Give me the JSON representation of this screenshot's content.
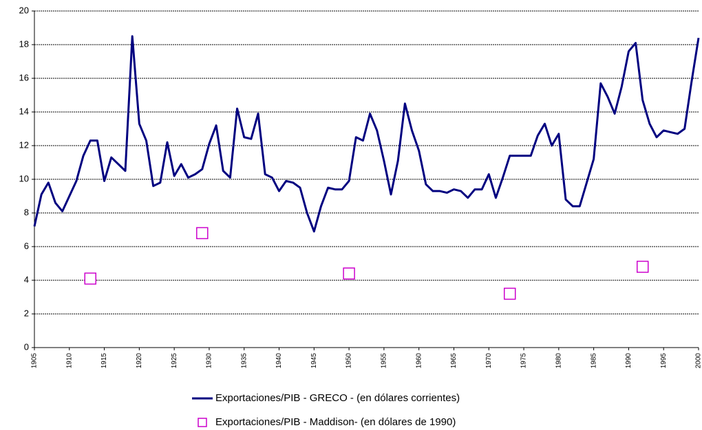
{
  "chart_data": {
    "type": "line",
    "x": [
      1905,
      1906,
      1907,
      1908,
      1909,
      1910,
      1911,
      1912,
      1913,
      1914,
      1915,
      1916,
      1917,
      1918,
      1919,
      1920,
      1921,
      1922,
      1923,
      1924,
      1925,
      1926,
      1927,
      1928,
      1929,
      1930,
      1931,
      1932,
      1933,
      1934,
      1935,
      1936,
      1937,
      1938,
      1939,
      1940,
      1941,
      1942,
      1943,
      1944,
      1945,
      1946,
      1947,
      1948,
      1949,
      1950,
      1951,
      1952,
      1953,
      1954,
      1955,
      1956,
      1957,
      1958,
      1959,
      1960,
      1961,
      1962,
      1963,
      1964,
      1965,
      1966,
      1967,
      1968,
      1969,
      1970,
      1971,
      1972,
      1973,
      1974,
      1975,
      1976,
      1977,
      1978,
      1979,
      1980,
      1981,
      1982,
      1983,
      1984,
      1985,
      1986,
      1987,
      1988,
      1989,
      1990,
      1991,
      1992,
      1993,
      1994,
      1995,
      1996,
      1997,
      1998,
      1999,
      2000
    ],
    "series": [
      {
        "name": "Exportaciones/PIB - GRECO - (en dólares corrientes)",
        "type": "line",
        "color": "#000080",
        "values": [
          7.2,
          9.1,
          9.8,
          8.6,
          8.1,
          9.0,
          9.9,
          11.4,
          12.3,
          12.3,
          9.9,
          11.3,
          10.9,
          10.5,
          18.5,
          13.3,
          12.3,
          9.6,
          9.8,
          12.2,
          10.2,
          10.9,
          10.1,
          10.3,
          10.6,
          12.1,
          13.2,
          10.5,
          10.1,
          14.2,
          12.5,
          12.4,
          13.9,
          10.3,
          10.1,
          9.3,
          9.9,
          9.8,
          9.5,
          8.0,
          6.9,
          8.4,
          9.5,
          9.4,
          9.4,
          9.9,
          12.5,
          12.3,
          13.9,
          12.9,
          11.1,
          9.1,
          11.1,
          14.5,
          12.9,
          11.7,
          9.7,
          9.3,
          9.3,
          9.2,
          9.4,
          9.3,
          8.9,
          9.4,
          9.4,
          10.3,
          8.9,
          10.1,
          11.4,
          11.4,
          11.4,
          11.4,
          12.6,
          13.3,
          12.0,
          12.7,
          8.8,
          8.4,
          8.4,
          9.8,
          11.2,
          15.7,
          14.9,
          13.9,
          15.5,
          17.6,
          18.1,
          14.7,
          13.3,
          12.5,
          12.9,
          12.8,
          12.7,
          13.0,
          15.8,
          18.4
        ]
      },
      {
        "name": "Exportaciones/PIB - Maddison- (en dólares de 1990)",
        "type": "scatter",
        "color": "#cc00cc",
        "x": [
          1913,
          1929,
          1950,
          1973,
          1992
        ],
        "values": [
          4.1,
          6.8,
          4.4,
          3.2,
          4.8
        ]
      }
    ],
    "xlim": [
      1905,
      2000
    ],
    "xticks": [
      1905,
      1910,
      1915,
      1920,
      1925,
      1930,
      1935,
      1940,
      1945,
      1950,
      1955,
      1960,
      1965,
      1970,
      1975,
      1980,
      1985,
      1990,
      1995,
      2000
    ],
    "ylim": [
      0,
      20
    ],
    "yticks": [
      0,
      2,
      4,
      6,
      8,
      10,
      12,
      14,
      16,
      18,
      20
    ],
    "grid": true
  }
}
